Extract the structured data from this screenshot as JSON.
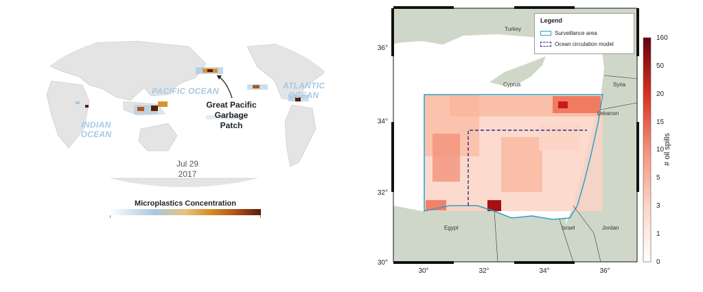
{
  "world_map": {
    "ocean_labels": {
      "pacific": "PACIFIC OCEAN",
      "atlantic_line1": "ATLANTIC",
      "atlantic_line2": "OCEAN",
      "indian_line1": "INDIAN",
      "indian_line2": "OCEAN"
    },
    "annotation": {
      "line1": "Great Pacific",
      "line2": "Garbage",
      "line3": "Patch"
    },
    "date": {
      "line1": "Jul 29",
      "line2": "2017"
    },
    "colorbar_title": "Microplastics Concentration",
    "colors": {
      "land": "#e6e6e6",
      "ocean_label": "#a9c8e0",
      "high": "#5a1c05",
      "mid": "#d6932c",
      "low": "#a9c8e0"
    }
  },
  "oil_map": {
    "x_ticks": [
      "30°",
      "32°",
      "34°",
      "36°"
    ],
    "y_ticks": [
      "36°",
      "34°",
      "32°",
      "30°"
    ],
    "places": {
      "turkey": "Turkey",
      "cyprus": "Cyprus",
      "syria": "Syria",
      "lebanon": "Lebanon",
      "egypt": "Egypt",
      "israel": "Israel",
      "jordan": "Jordan"
    },
    "legend": {
      "title": "Legend",
      "surveillance": "Surveillance area",
      "circulation": "Ocean circulation model"
    },
    "colorbar": {
      "title": "# oil spills",
      "labels": [
        "160",
        "50",
        "20",
        "15",
        "10",
        "5",
        "3",
        "1",
        "0"
      ]
    },
    "colors": {
      "surveillance": "#2aa0c8",
      "circulation_model": "#2b2a8a",
      "sea": "#ffffff",
      "land": "#cfd8c8",
      "spill_max": "#67000d"
    }
  }
}
